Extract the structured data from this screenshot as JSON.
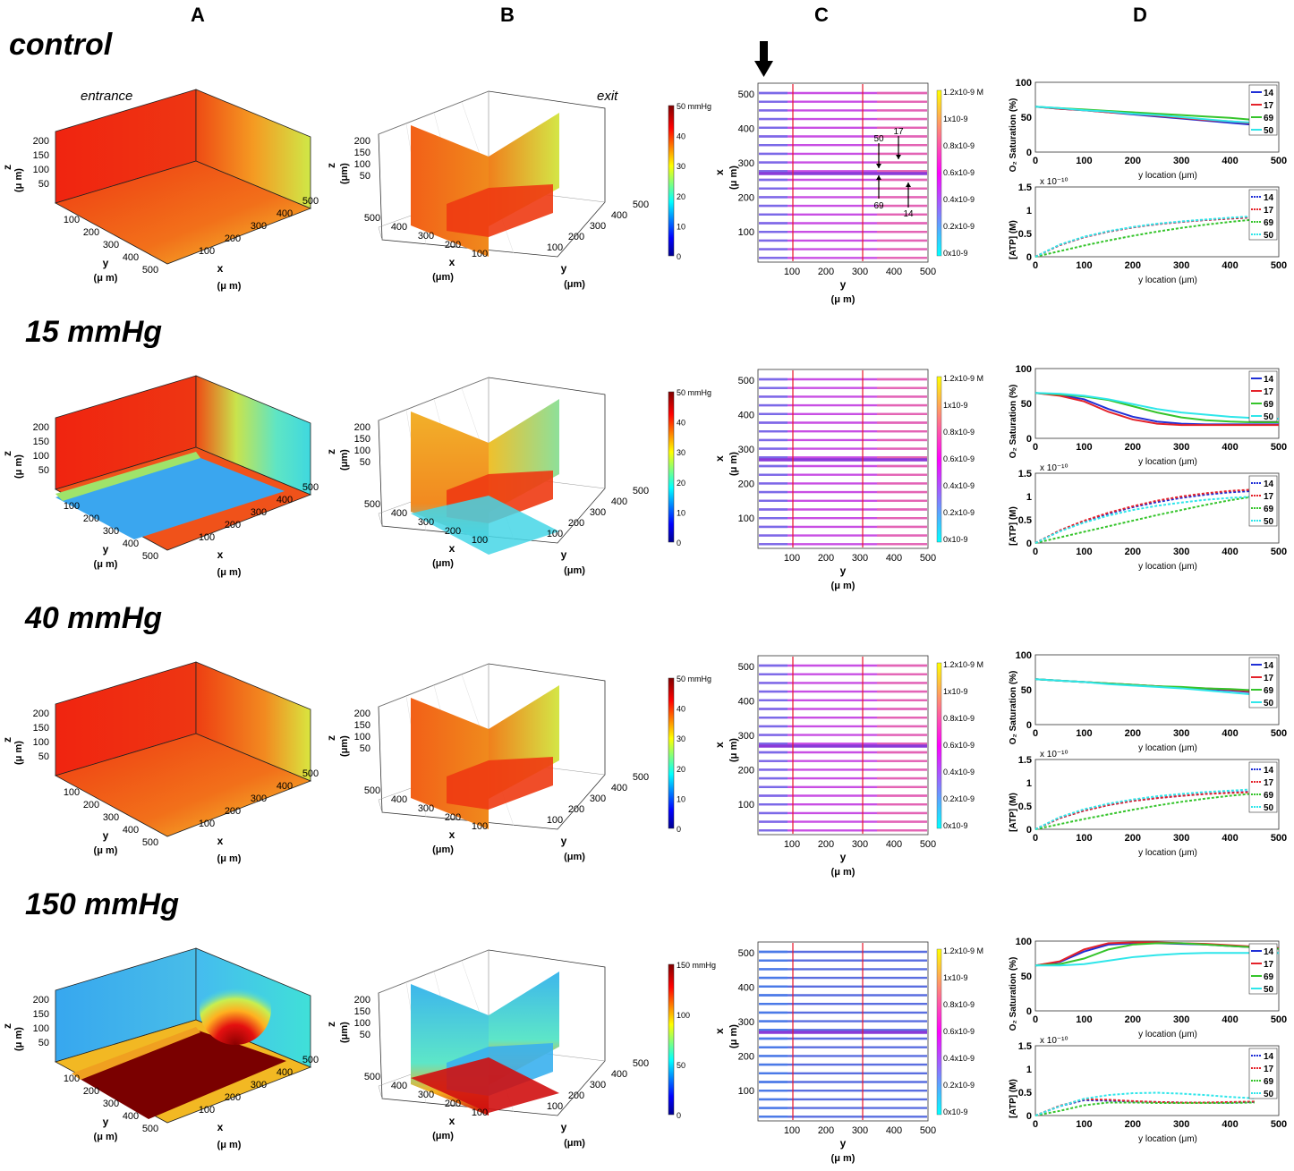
{
  "columns": [
    "A",
    "B",
    "C",
    "D"
  ],
  "rows": [
    {
      "title": "control",
      "mode": "ctrl",
      "b_max": 50
    },
    {
      "title": "15 mmHg",
      "mode": "15",
      "b_max": 50
    },
    {
      "title": "40 mmHg",
      "mode": "40",
      "b_max": 50
    },
    {
      "title": "150 mmHg",
      "mode": "150",
      "b_max": 150
    }
  ],
  "labels": {
    "entrance": "entrance",
    "exit": "exit",
    "z": "z",
    "x": "x",
    "y": "y",
    "um": "(μ m)",
    "um_tight": "(μm)",
    "ylocation": "y location (μm)",
    "o2_axis": "O₂ Saturation (%)",
    "atp_axis": "[ATP] (M)",
    "atp_exp": "x 10⁻¹⁰",
    "b_unit": "mmHg",
    "c_top": "1.2x10-9 M",
    "c_ticks": [
      "1x10-9",
      "0.8x10-9",
      "0.6x10-9",
      "0.4x10-9",
      "0.2x10-9",
      "0x10-9"
    ]
  },
  "axis_ticks": {
    "z": [
      "200",
      "150",
      "100",
      "50"
    ],
    "xy": [
      "100",
      "200",
      "300",
      "400",
      "500"
    ],
    "b_xrev": [
      "500",
      "400",
      "300",
      "200",
      "100"
    ],
    "c_x": [
      "500",
      "400",
      "300",
      "200",
      "100"
    ],
    "c_y": [
      "100",
      "200",
      "300",
      "400",
      "500"
    ],
    "d_x": [
      "0",
      "100",
      "200",
      "300",
      "400",
      "500"
    ],
    "o2_y": [
      "100",
      "50",
      "0"
    ],
    "atp_y": [
      "1.5",
      "1",
      "0.5",
      "0"
    ]
  },
  "annotations": {
    "a50": "50",
    "a17": "17",
    "a69": "69",
    "a14": "14"
  },
  "legend": [
    "14",
    "17",
    "69",
    "50"
  ],
  "colors": {
    "14": "#1f2fd6",
    "17": "#e4222a",
    "69": "#35c42b",
    "50": "#2fe6ea"
  },
  "chart_data": [
    {
      "type": "line",
      "panel": "D-control-O2",
      "title": "control",
      "xlabel": "y location (μm)",
      "ylabel": "O₂ Saturation (%)",
      "xlim": [
        0,
        500
      ],
      "ylim": [
        0,
        100
      ],
      "x": [
        0,
        50,
        100,
        150,
        200,
        250,
        300,
        350,
        400,
        450
      ],
      "series": [
        {
          "name": "14",
          "values": [
            65,
            62,
            60,
            57,
            54,
            51,
            48,
            45,
            42,
            39
          ]
        },
        {
          "name": "17",
          "values": [
            65,
            62,
            60,
            57,
            55,
            52,
            49,
            46,
            44,
            41
          ]
        },
        {
          "name": "69",
          "values": [
            65,
            63,
            61,
            59,
            57,
            55,
            53,
            51,
            49,
            46
          ]
        },
        {
          "name": "50",
          "values": [
            65,
            63,
            60,
            58,
            55,
            53,
            50,
            47,
            44,
            42
          ]
        }
      ]
    },
    {
      "type": "line",
      "panel": "D-control-ATP",
      "title": "control",
      "xlabel": "y location (μm)",
      "ylabel": "[ATP] (M) x 10⁻¹⁰",
      "xlim": [
        0,
        500
      ],
      "ylim": [
        0,
        1.5
      ],
      "x": [
        0,
        50,
        100,
        150,
        200,
        250,
        300,
        350,
        400,
        450
      ],
      "series": [
        {
          "name": "14",
          "values": [
            0,
            0.25,
            0.42,
            0.54,
            0.63,
            0.7,
            0.75,
            0.79,
            0.82,
            0.85
          ]
        },
        {
          "name": "17",
          "values": [
            0,
            0.25,
            0.42,
            0.54,
            0.63,
            0.7,
            0.75,
            0.79,
            0.82,
            0.85
          ]
        },
        {
          "name": "69",
          "values": [
            0,
            0.12,
            0.24,
            0.35,
            0.45,
            0.54,
            0.62,
            0.69,
            0.75,
            0.8
          ]
        },
        {
          "name": "50",
          "values": [
            0,
            0.26,
            0.43,
            0.55,
            0.64,
            0.71,
            0.76,
            0.8,
            0.84,
            0.87
          ]
        }
      ]
    },
    {
      "type": "line",
      "panel": "D-15-O2",
      "title": "15 mmHg",
      "xlabel": "y location (μm)",
      "ylabel": "O₂ Saturation (%)",
      "xlim": [
        0,
        500
      ],
      "ylim": [
        0,
        100
      ],
      "x": [
        0,
        50,
        100,
        150,
        200,
        250,
        300,
        350,
        400,
        450,
        500
      ],
      "series": [
        {
          "name": "14",
          "values": [
            65,
            62,
            56,
            42,
            31,
            24,
            21,
            20,
            20,
            20,
            20
          ]
        },
        {
          "name": "17",
          "values": [
            65,
            61,
            53,
            38,
            27,
            21,
            19,
            19,
            19,
            19,
            19
          ]
        },
        {
          "name": "69",
          "values": [
            65,
            63,
            60,
            55,
            46,
            37,
            30,
            26,
            24,
            23,
            23
          ]
        },
        {
          "name": "50",
          "values": [
            65,
            64,
            61,
            56,
            49,
            42,
            37,
            34,
            31,
            29,
            28
          ]
        }
      ]
    },
    {
      "type": "line",
      "panel": "D-15-ATP",
      "title": "15 mmHg",
      "xlabel": "y location (μm)",
      "ylabel": "[ATP] (M) x 10⁻¹⁰",
      "xlim": [
        0,
        500
      ],
      "ylim": [
        0,
        1.5
      ],
      "x": [
        0,
        50,
        100,
        150,
        200,
        250,
        300,
        350,
        400,
        450
      ],
      "series": [
        {
          "name": "14",
          "values": [
            0,
            0.26,
            0.46,
            0.63,
            0.77,
            0.88,
            0.97,
            1.04,
            1.09,
            1.12
          ]
        },
        {
          "name": "17",
          "values": [
            0,
            0.27,
            0.48,
            0.65,
            0.79,
            0.91,
            1.0,
            1.07,
            1.12,
            1.15
          ]
        },
        {
          "name": "69",
          "values": [
            0,
            0.12,
            0.24,
            0.36,
            0.48,
            0.6,
            0.71,
            0.82,
            0.92,
            1.0
          ]
        },
        {
          "name": "50",
          "values": [
            0,
            0.25,
            0.44,
            0.59,
            0.71,
            0.8,
            0.87,
            0.93,
            0.97,
            1.0
          ]
        }
      ]
    },
    {
      "type": "line",
      "panel": "D-40-O2",
      "title": "40 mmHg",
      "xlabel": "y location (μm)",
      "ylabel": "O₂ Saturation (%)",
      "xlim": [
        0,
        500
      ],
      "ylim": [
        0,
        100
      ],
      "x": [
        0,
        50,
        100,
        150,
        200,
        250,
        300,
        350,
        400,
        450
      ],
      "series": [
        {
          "name": "14",
          "values": [
            65,
            63,
            61,
            59,
            57,
            55,
            53,
            51,
            49,
            46
          ]
        },
        {
          "name": "17",
          "values": [
            65,
            63,
            61,
            59,
            57,
            55,
            53,
            52,
            50,
            47
          ]
        },
        {
          "name": "69",
          "values": [
            65,
            63,
            61,
            59,
            57,
            55,
            54,
            52,
            51,
            49
          ]
        },
        {
          "name": "50",
          "values": [
            65,
            63,
            61,
            58,
            56,
            54,
            52,
            49,
            46,
            43
          ]
        }
      ]
    },
    {
      "type": "line",
      "panel": "D-40-ATP",
      "title": "40 mmHg",
      "xlabel": "y location (μm)",
      "ylabel": "[ATP] (M) x 10⁻¹⁰",
      "xlim": [
        0,
        500
      ],
      "ylim": [
        0,
        1.5
      ],
      "x": [
        0,
        50,
        100,
        150,
        200,
        250,
        300,
        350,
        400,
        450
      ],
      "series": [
        {
          "name": "14",
          "values": [
            0,
            0.24,
            0.4,
            0.52,
            0.61,
            0.67,
            0.72,
            0.76,
            0.79,
            0.81
          ]
        },
        {
          "name": "17",
          "values": [
            0,
            0.24,
            0.4,
            0.52,
            0.61,
            0.67,
            0.72,
            0.76,
            0.78,
            0.8
          ]
        },
        {
          "name": "69",
          "values": [
            0,
            0.11,
            0.22,
            0.32,
            0.42,
            0.51,
            0.59,
            0.66,
            0.72,
            0.77
          ]
        },
        {
          "name": "50",
          "values": [
            0,
            0.26,
            0.43,
            0.55,
            0.64,
            0.71,
            0.76,
            0.8,
            0.83,
            0.86
          ]
        }
      ]
    },
    {
      "type": "line",
      "panel": "D-150-O2",
      "title": "150 mmHg",
      "xlabel": "y location (μm)",
      "ylabel": "O₂ Saturation (%)",
      "xlim": [
        0,
        500
      ],
      "ylim": [
        0,
        100
      ],
      "x": [
        0,
        50,
        100,
        150,
        200,
        250,
        300,
        350,
        400,
        450,
        500
      ],
      "series": [
        {
          "name": "14",
          "values": [
            65,
            70,
            85,
            95,
            97,
            97,
            96,
            95,
            93,
            91,
            89
          ]
        },
        {
          "name": "17",
          "values": [
            65,
            71,
            88,
            97,
            98,
            98,
            97,
            96,
            94,
            92,
            90
          ]
        },
        {
          "name": "69",
          "values": [
            65,
            67,
            75,
            88,
            95,
            97,
            97,
            95,
            93,
            91,
            89
          ]
        },
        {
          "name": "50",
          "values": [
            65,
            65,
            67,
            72,
            77,
            80,
            82,
            83,
            83,
            83,
            83
          ]
        }
      ]
    },
    {
      "type": "line",
      "panel": "D-150-ATP",
      "title": "150 mmHg",
      "xlabel": "y location (μm)",
      "ylabel": "[ATP] (M) x 10⁻¹⁰",
      "xlim": [
        0,
        500
      ],
      "ylim": [
        0,
        1.5
      ],
      "x": [
        0,
        50,
        100,
        150,
        200,
        250,
        300,
        350,
        400,
        450
      ],
      "series": [
        {
          "name": "14",
          "values": [
            0,
            0.2,
            0.33,
            0.32,
            0.3,
            0.29,
            0.28,
            0.28,
            0.28,
            0.29
          ]
        },
        {
          "name": "17",
          "values": [
            0,
            0.21,
            0.35,
            0.34,
            0.31,
            0.29,
            0.28,
            0.28,
            0.29,
            0.3
          ]
        },
        {
          "name": "69",
          "values": [
            0,
            0.1,
            0.22,
            0.28,
            0.28,
            0.27,
            0.27,
            0.27,
            0.27,
            0.28
          ]
        },
        {
          "name": "50",
          "values": [
            0,
            0.2,
            0.36,
            0.44,
            0.48,
            0.49,
            0.47,
            0.44,
            0.4,
            0.37
          ]
        }
      ]
    }
  ]
}
